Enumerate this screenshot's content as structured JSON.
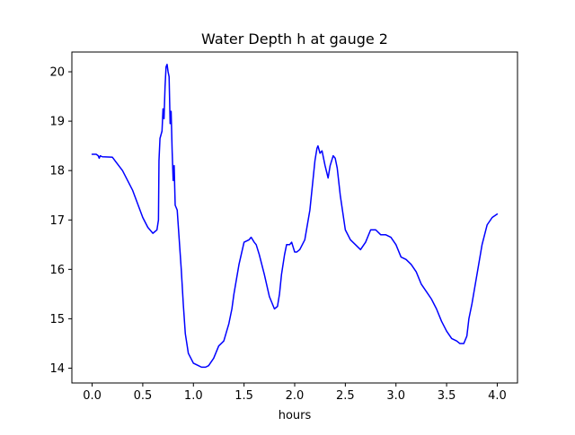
{
  "chart_data": {
    "type": "line",
    "title": "Water Depth h at gauge 2",
    "xlabel": "hours",
    "ylabel": "",
    "xlim": [
      -0.2,
      4.2
    ],
    "ylim": [
      13.7,
      20.4
    ],
    "xticks": [
      "0.0",
      "0.5",
      "1.0",
      "1.5",
      "2.0",
      "2.5",
      "3.0",
      "3.5",
      "4.0"
    ],
    "yticks": [
      "14",
      "15",
      "16",
      "17",
      "18",
      "19",
      "20"
    ],
    "grid": false,
    "legend": "none",
    "series": [
      {
        "color": "#0000ff",
        "x": [
          0.0,
          0.04,
          0.06,
          0.07,
          0.08,
          0.1,
          0.2,
          0.3,
          0.4,
          0.5,
          0.55,
          0.6,
          0.64,
          0.655,
          0.66,
          0.67,
          0.69,
          0.7,
          0.71,
          0.72,
          0.73,
          0.74,
          0.75,
          0.76,
          0.77,
          0.78,
          0.79,
          0.8,
          0.81,
          0.82,
          0.84,
          0.86,
          0.88,
          0.9,
          0.92,
          0.95,
          1.0,
          1.05,
          1.08,
          1.1,
          1.12,
          1.15,
          1.2,
          1.25,
          1.3,
          1.35,
          1.37,
          1.38,
          1.4,
          1.45,
          1.5,
          1.55,
          1.57,
          1.6,
          1.62,
          1.65,
          1.7,
          1.75,
          1.8,
          1.83,
          1.85,
          1.87,
          1.9,
          1.92,
          1.95,
          1.97,
          2.0,
          2.02,
          2.05,
          2.1,
          2.15,
          2.2,
          2.22,
          2.23,
          2.25,
          2.27,
          2.3,
          2.33,
          2.35,
          2.38,
          2.4,
          2.42,
          2.45,
          2.5,
          2.55,
          2.6,
          2.65,
          2.7,
          2.75,
          2.8,
          2.85,
          2.9,
          2.95,
          3.0,
          3.05,
          3.1,
          3.15,
          3.2,
          3.25,
          3.3,
          3.35,
          3.4,
          3.45,
          3.5,
          3.55,
          3.6,
          3.63,
          3.65,
          3.67,
          3.7,
          3.72,
          3.75,
          3.8,
          3.85,
          3.9,
          3.95,
          4.0
        ],
        "y": [
          18.33,
          18.33,
          18.3,
          18.25,
          18.3,
          18.28,
          18.27,
          18.0,
          17.6,
          17.05,
          16.85,
          16.73,
          16.8,
          17.0,
          18.2,
          18.65,
          18.8,
          19.25,
          19.05,
          19.7,
          20.1,
          20.15,
          20.0,
          19.9,
          18.95,
          19.2,
          18.4,
          17.8,
          18.1,
          17.3,
          17.2,
          16.6,
          16.0,
          15.3,
          14.7,
          14.3,
          14.1,
          14.05,
          14.02,
          14.02,
          14.02,
          14.05,
          14.2,
          14.45,
          14.55,
          14.9,
          15.1,
          15.2,
          15.5,
          16.1,
          16.55,
          16.6,
          16.65,
          16.55,
          16.5,
          16.3,
          15.9,
          15.45,
          15.2,
          15.25,
          15.5,
          15.9,
          16.3,
          16.5,
          16.5,
          16.55,
          16.35,
          16.35,
          16.4,
          16.6,
          17.2,
          18.2,
          18.45,
          18.5,
          18.35,
          18.4,
          18.1,
          17.85,
          18.1,
          18.3,
          18.25,
          18.05,
          17.5,
          16.8,
          16.6,
          16.5,
          16.4,
          16.55,
          16.8,
          16.8,
          16.7,
          16.7,
          16.65,
          16.5,
          16.25,
          16.2,
          16.1,
          15.95,
          15.7,
          15.55,
          15.4,
          15.2,
          14.95,
          14.75,
          14.6,
          14.55,
          14.5,
          14.5,
          14.5,
          14.65,
          15.0,
          15.3,
          15.9,
          16.5,
          16.9,
          17.05,
          17.12
        ]
      }
    ]
  }
}
